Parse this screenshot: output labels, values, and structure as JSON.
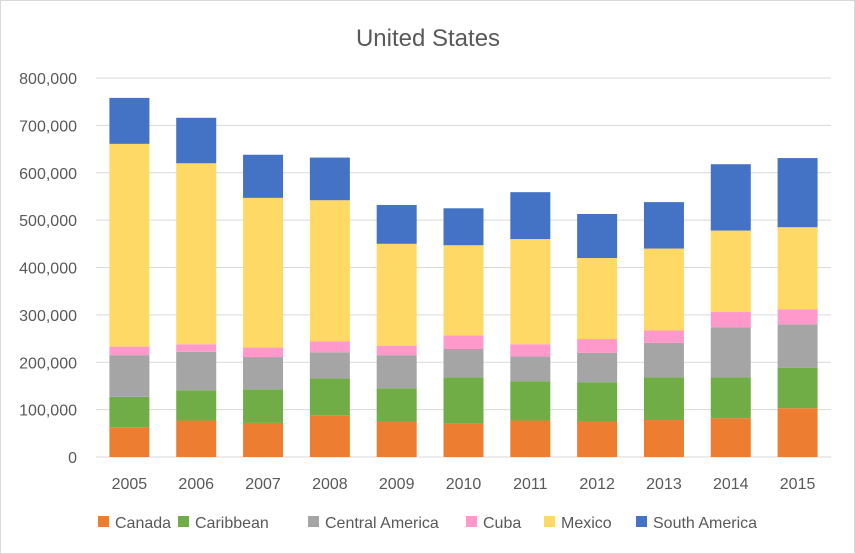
{
  "chart_data": {
    "type": "bar",
    "stacked": true,
    "title": "United States",
    "xlabel": "",
    "ylabel": "",
    "categories": [
      "2005",
      "2006",
      "2007",
      "2008",
      "2009",
      "2010",
      "2011",
      "2012",
      "2013",
      "2014",
      "2015"
    ],
    "ylim": [
      0,
      800000
    ],
    "yticks": [
      0,
      100000,
      200000,
      300000,
      400000,
      500000,
      600000,
      700000,
      800000
    ],
    "ytick_labels": [
      "0",
      "100,000",
      "200,000",
      "300,000",
      "400,000",
      "500,000",
      "600,000",
      "700,000",
      "800,000"
    ],
    "grid": true,
    "legend_position": "bottom",
    "series": [
      {
        "name": "Canada",
        "color": "#ed7d31",
        "values": [
          63000,
          77000,
          72000,
          88000,
          74000,
          70000,
          77000,
          75000,
          78000,
          82000,
          103000
        ]
      },
      {
        "name": "Caribbean",
        "color": "#70ad47",
        "values": [
          64000,
          64000,
          71000,
          78000,
          71000,
          98000,
          83000,
          83000,
          90000,
          86000,
          85000
        ]
      },
      {
        "name": "Central America",
        "color": "#a5a5a5",
        "values": [
          88000,
          81000,
          68000,
          55000,
          70000,
          60000,
          52000,
          62000,
          73000,
          106000,
          92000
        ]
      },
      {
        "name": "Cuba",
        "color": "#ff99cc",
        "values": [
          18000,
          16000,
          20000,
          23000,
          20000,
          29000,
          26000,
          29000,
          26000,
          32000,
          32000
        ]
      },
      {
        "name": "Mexico",
        "color": "#ffd966",
        "values": [
          428000,
          382000,
          316000,
          298000,
          215000,
          190000,
          222000,
          171000,
          173000,
          172000,
          173000
        ]
      },
      {
        "name": "South America",
        "color": "#4472c4",
        "values": [
          97000,
          96000,
          91000,
          90000,
          82000,
          78000,
          99000,
          93000,
          98000,
          140000,
          146000
        ]
      }
    ]
  },
  "colors": {
    "gridline": "#d9d9d9",
    "text": "#595959"
  }
}
